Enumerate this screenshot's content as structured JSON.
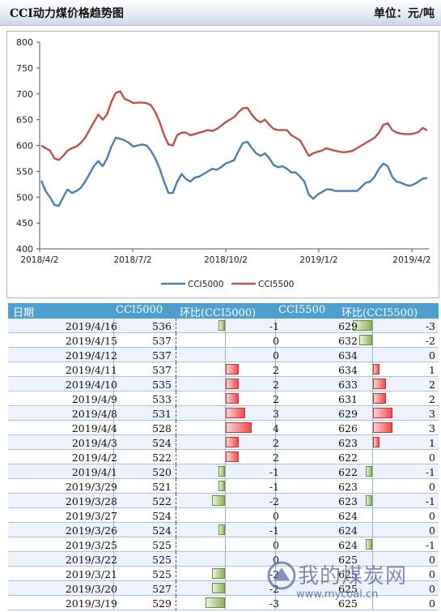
{
  "header": {
    "title": "CCI动力煤价格趋势图",
    "unit": "单位：元/吨"
  },
  "chart_data": {
    "type": "line",
    "ylim": [
      400,
      800
    ],
    "yticks": [
      "800",
      "750",
      "700",
      "650",
      "600",
      "550",
      "500",
      "450",
      "400"
    ],
    "xticks": [
      "2018/4/2",
      "2018/7/2",
      "2018/10/2",
      "2019/1/2",
      "2019/4/2"
    ],
    "xlabel": "",
    "ylabel": "",
    "legend_position": "bottom",
    "series": [
      {
        "name": "CCI5000",
        "color": "#4a7eb5",
        "values": [
          532,
          512,
          500,
          485,
          483,
          500,
          515,
          508,
          512,
          518,
          530,
          545,
          560,
          570,
          560,
          575,
          598,
          615,
          613,
          610,
          605,
          598,
          600,
          602,
          600,
          590,
          575,
          555,
          530,
          508,
          508,
          530,
          545,
          535,
          530,
          538,
          540,
          545,
          550,
          555,
          553,
          558,
          565,
          568,
          572,
          590,
          605,
          607,
          595,
          585,
          580,
          585,
          575,
          562,
          558,
          560,
          555,
          548,
          548,
          540,
          530,
          505,
          497,
          505,
          510,
          515,
          515,
          512,
          512,
          512,
          512,
          512,
          512,
          520,
          528,
          530,
          540,
          555,
          565,
          560,
          540,
          530,
          528,
          524,
          522,
          525,
          530,
          536,
          537
        ]
      },
      {
        "name": "CCI5500",
        "color": "#c0504d",
        "values": [
          600,
          595,
          590,
          575,
          572,
          580,
          590,
          595,
          598,
          605,
          615,
          630,
          645,
          660,
          650,
          660,
          685,
          702,
          705,
          690,
          687,
          682,
          683,
          683,
          682,
          678,
          665,
          645,
          620,
          602,
          600,
          620,
          625,
          625,
          620,
          622,
          625,
          627,
          630,
          628,
          632,
          638,
          645,
          650,
          655,
          665,
          672,
          673,
          660,
          650,
          645,
          650,
          640,
          632,
          630,
          630,
          630,
          620,
          615,
          610,
          595,
          580,
          585,
          588,
          590,
          595,
          592,
          590,
          588,
          587,
          588,
          590,
          595,
          600,
          605,
          610,
          615,
          625,
          640,
          643,
          630,
          625,
          623,
          622,
          622,
          623,
          626,
          634,
          629
        ]
      }
    ]
  },
  "table": {
    "headers": [
      "日期",
      "CCI5000",
      "环比(CCI5000)",
      "CCI5500",
      "环比(CCI5500)"
    ],
    "rows": [
      {
        "date": "2019/4/16",
        "v1": "536",
        "c1": "-1",
        "v2": "629",
        "c2": "-3"
      },
      {
        "date": "2019/4/15",
        "v1": "537",
        "c1": "0",
        "v2": "632",
        "c2": "-2"
      },
      {
        "date": "2019/4/12",
        "v1": "537",
        "c1": "0",
        "v2": "634",
        "c2": "0"
      },
      {
        "date": "2019/4/11",
        "v1": "537",
        "c1": "2",
        "v2": "634",
        "c2": "1"
      },
      {
        "date": "2019/4/10",
        "v1": "535",
        "c1": "2",
        "v2": "633",
        "c2": "2"
      },
      {
        "date": "2019/4/9",
        "v1": "533",
        "c1": "2",
        "v2": "631",
        "c2": "2"
      },
      {
        "date": "2019/4/8",
        "v1": "531",
        "c1": "3",
        "v2": "629",
        "c2": "3"
      },
      {
        "date": "2019/4/4",
        "v1": "528",
        "c1": "4",
        "v2": "626",
        "c2": "3"
      },
      {
        "date": "2019/4/3",
        "v1": "524",
        "c1": "2",
        "v2": "623",
        "c2": "1"
      },
      {
        "date": "2019/4/2",
        "v1": "522",
        "c1": "2",
        "v2": "622",
        "c2": "0"
      },
      {
        "date": "2019/4/1",
        "v1": "520",
        "c1": "-1",
        "v2": "622",
        "c2": "-1"
      },
      {
        "date": "2019/3/29",
        "v1": "521",
        "c1": "-1",
        "v2": "623",
        "c2": "0"
      },
      {
        "date": "2019/3/28",
        "v1": "522",
        "c1": "-2",
        "v2": "623",
        "c2": "-1"
      },
      {
        "date": "2019/3/27",
        "v1": "524",
        "c1": "0",
        "v2": "624",
        "c2": "0"
      },
      {
        "date": "2019/3/26",
        "v1": "524",
        "c1": "-1",
        "v2": "624",
        "c2": "0"
      },
      {
        "date": "2019/3/25",
        "v1": "525",
        "c1": "0",
        "v2": "624",
        "c2": "-1"
      },
      {
        "date": "2019/3/22",
        "v1": "525",
        "c1": "0",
        "v2": "625",
        "c2": "0"
      },
      {
        "date": "2019/3/21",
        "v1": "525",
        "c1": "-2",
        "v2": "625",
        "c2": "0"
      },
      {
        "date": "2019/3/20",
        "v1": "527",
        "c1": "-2",
        "v2": "625",
        "c2": "0"
      },
      {
        "date": "2019/3/19",
        "v1": "529",
        "c1": "-3",
        "v2": "625",
        "c2": "0"
      }
    ]
  },
  "watermark": {
    "text": "我的煤炭网",
    "url": "www.mycoal.cn"
  }
}
